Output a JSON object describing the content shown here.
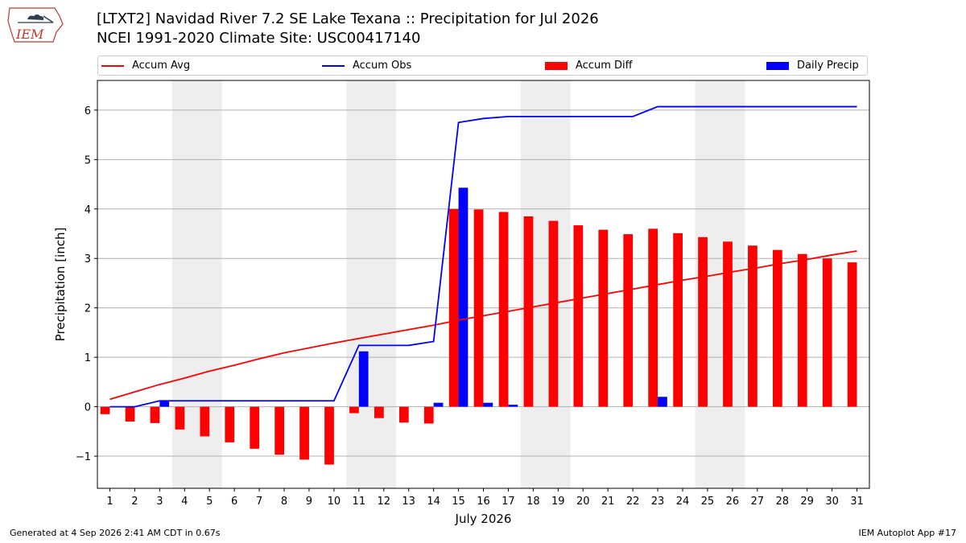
{
  "header": {
    "title_line1": "[LTXT2] Navidad River 7.2 SE Lake Texana :: Precipitation for Jul 2026",
    "title_line2": "NCEI 1991-2020 Climate Site: USC00417140",
    "logo_text": "IEM"
  },
  "footer": {
    "generated": "Generated at 4 Sep 2026 2:41 AM CDT in 0.67s",
    "app": "IEM Autoplot App #17"
  },
  "colors": {
    "accum_avg": "#ff0000",
    "accum_obs": "#0000ff",
    "accum_diff": "#ff0000",
    "daily_precip": "#0000ff",
    "weekend_shade": "#eeeeee",
    "grid": "#b0b0b0"
  },
  "chart_data": {
    "type": "bar",
    "xlabel": "July 2026",
    "ylabel": "Precipitation [inch]",
    "ylim": [
      -1.65,
      6.6
    ],
    "yticks": [
      -1,
      0,
      1,
      2,
      3,
      4,
      5,
      6
    ],
    "ytick_labels": [
      "−1",
      "0",
      "1",
      "2",
      "3",
      "4",
      "5",
      "6"
    ],
    "xlim": [
      0.5,
      31.5
    ],
    "categories": [
      "1",
      "2",
      "3",
      "4",
      "5",
      "6",
      "7",
      "8",
      "9",
      "10",
      "11",
      "12",
      "13",
      "14",
      "15",
      "16",
      "17",
      "18",
      "19",
      "20",
      "21",
      "22",
      "23",
      "24",
      "25",
      "26",
      "27",
      "28",
      "29",
      "30",
      "31"
    ],
    "shaded_days": [
      [
        4,
        5
      ],
      [
        11,
        12
      ],
      [
        18,
        19
      ],
      [
        25,
        26
      ]
    ],
    "grid": "horizontal",
    "legend_position": "top",
    "legend": [
      "Accum Avg",
      "Accum Obs",
      "Accum Diff",
      "Daily Precip"
    ],
    "series": [
      {
        "name": "Accum Avg",
        "kind": "line",
        "values": [
          0.15,
          0.3,
          0.45,
          0.58,
          0.72,
          0.84,
          0.97,
          1.09,
          1.19,
          1.29,
          1.38,
          1.47,
          1.56,
          1.65,
          1.75,
          1.84,
          1.93,
          2.02,
          2.11,
          2.2,
          2.29,
          2.38,
          2.47,
          2.56,
          2.64,
          2.73,
          2.81,
          2.9,
          2.98,
          3.07,
          3.15
        ]
      },
      {
        "name": "Accum Obs",
        "kind": "line",
        "values": [
          0.0,
          0.0,
          0.12,
          0.12,
          0.12,
          0.12,
          0.12,
          0.12,
          0.12,
          0.12,
          1.24,
          1.24,
          1.24,
          1.32,
          5.75,
          5.83,
          5.87,
          5.87,
          5.87,
          5.87,
          5.87,
          5.87,
          6.07,
          6.07,
          6.07,
          6.07,
          6.07,
          6.07,
          6.07,
          6.07,
          6.07
        ]
      },
      {
        "name": "Accum Diff",
        "kind": "bar",
        "values": [
          -0.15,
          -0.3,
          -0.33,
          -0.46,
          -0.6,
          -0.72,
          -0.85,
          -0.97,
          -1.07,
          -1.17,
          -0.13,
          -0.23,
          -0.32,
          -0.34,
          4.0,
          3.99,
          3.94,
          3.85,
          3.76,
          3.67,
          3.58,
          3.49,
          3.6,
          3.51,
          3.43,
          3.34,
          3.26,
          3.17,
          3.09,
          3.0,
          2.92
        ]
      },
      {
        "name": "Daily Precip",
        "kind": "bar",
        "values": [
          0,
          0,
          0.12,
          0,
          0,
          0,
          0,
          0,
          0,
          0,
          1.12,
          0,
          0,
          0.08,
          4.43,
          0.08,
          0.04,
          0,
          0,
          0,
          0,
          0,
          0.2,
          0,
          0,
          0,
          0,
          0,
          0,
          0,
          0
        ]
      }
    ]
  }
}
